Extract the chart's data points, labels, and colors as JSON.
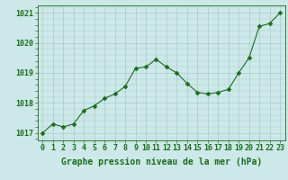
{
  "x": [
    0,
    1,
    2,
    3,
    4,
    5,
    6,
    7,
    8,
    9,
    10,
    11,
    12,
    13,
    14,
    15,
    16,
    17,
    18,
    19,
    20,
    21,
    22,
    23
  ],
  "y": [
    1017.0,
    1017.3,
    1017.2,
    1017.3,
    1017.75,
    1017.9,
    1018.15,
    1018.3,
    1018.55,
    1019.15,
    1019.2,
    1019.45,
    1019.2,
    1019.0,
    1018.65,
    1018.35,
    1018.3,
    1018.35,
    1018.45,
    1019.0,
    1019.5,
    1020.55,
    1020.65,
    1021.0
  ],
  "line_color": "#1a6e1a",
  "marker_color": "#1a6e1a",
  "bg_color": "#cce8e8",
  "grid_color": "#aacccc",
  "text_color": "#1a6e1a",
  "axis_label": "Graphe pression niveau de la mer (hPa)",
  "ylim": [
    1016.75,
    1021.25
  ],
  "xlim": [
    -0.5,
    23.5
  ],
  "yticks": [
    1017,
    1018,
    1019,
    1020,
    1021
  ],
  "xticks": [
    0,
    1,
    2,
    3,
    4,
    5,
    6,
    7,
    8,
    9,
    10,
    11,
    12,
    13,
    14,
    15,
    16,
    17,
    18,
    19,
    20,
    21,
    22,
    23
  ],
  "xlabel_fontsize": 7.0,
  "tick_fontsize": 6.0,
  "marker_size": 2.5,
  "line_width": 0.8
}
